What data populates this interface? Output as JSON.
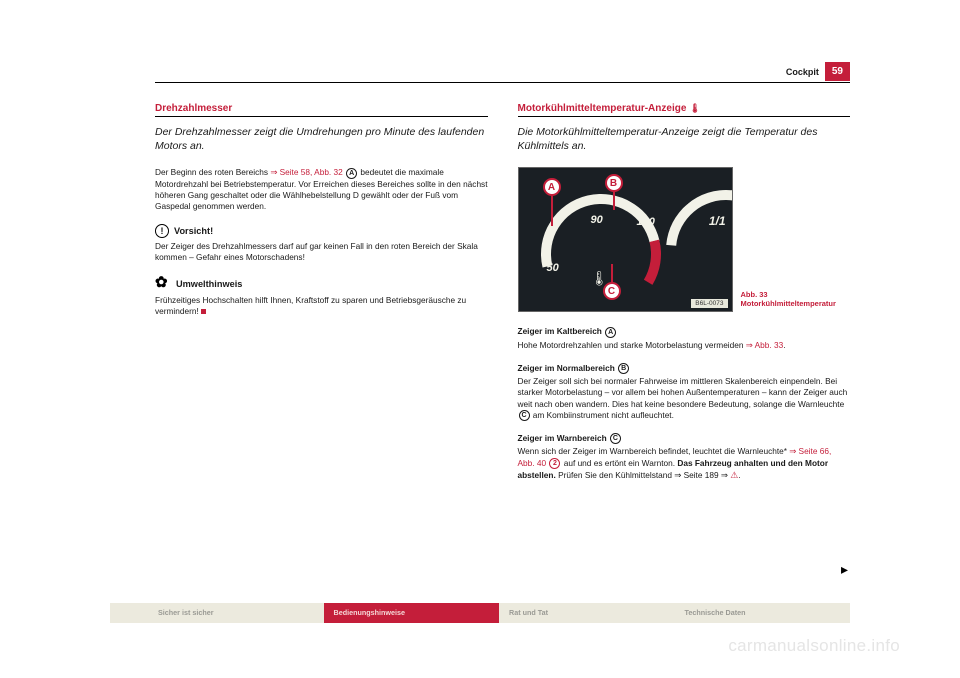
{
  "header": {
    "section": "Cockpit",
    "page_number": "59"
  },
  "left": {
    "title": "Drehzahlmesser",
    "lead": "Der Drehzahlmesser zeigt die Umdrehungen pro Minute des laufenden Motors an.",
    "p1_a": "Der Beginn des roten Bereichs ",
    "p1_ref": "⇒ Seite 58, Abb. 32",
    "p1_circ": "A",
    "p1_b": " bedeutet die maximale Motordrehzahl bei Betriebstemperatur. Vor Erreichen dieses Bereiches sollte in den nächst höheren Gang geschaltet oder die Wählhebelstellung D gewählt oder der Fuß vom Gaspedal genommen werden.",
    "caution_head": "Vorsicht!",
    "caution_body": "Der Zeiger des Drehzahlmessers darf auf gar keinen Fall in den roten Bereich der Skala kommen – Gefahr eines Motorschadens!",
    "env_head": "Umwelthinweis",
    "env_body": "Frühzeitiges Hochschalten hilft Ihnen, Kraftstoff zu sparen und Betriebsgeräusche zu vermindern!"
  },
  "right": {
    "title": "Motorkühlmitteltemperatur-Anzeige ",
    "lead": "Die Motorkühlmitteltemperatur-Anzeige zeigt die Temperatur des Kühlmittels an.",
    "fig": {
      "n50": "50",
      "n90": "90",
      "n130": "130",
      "n11": "1/1",
      "code": "B6L-0073",
      "caption": "Abb. 33   Motorkühlmitteltemperatur",
      "mA": "A",
      "mB": "B",
      "mC": "C"
    },
    "s1_head_a": "Zeiger im Kaltbereich ",
    "s1_circ": "A",
    "s1_body_a": "Hohe Motordrehzahlen und starke Motorbelastung vermeiden ",
    "s1_ref": "⇒ Abb. 33",
    "s1_body_b": ".",
    "s2_head_a": "Zeiger im Normalbereich ",
    "s2_circ": "B",
    "s2_body_a": "Der Zeiger soll sich bei normaler Fahrweise im mittleren Skalenbereich einpendeln. Bei starker Motorbelastung – vor allem bei hohen Außentemperaturen – kann der Zeiger auch weit nach oben wandern. Dies hat keine besondere Bedeutung, solange die Warnleuchte ",
    "s2_circ2": "C",
    "s2_body_b": " am Kombiinstrument nicht aufleuchtet.",
    "s3_head_a": "Zeiger im Warnbereich ",
    "s3_circ": "C",
    "s3_body_a": "Wenn sich der Zeiger im Warnbereich befindet, leuchtet die Warnleuchte* ",
    "s3_ref": "⇒ Seite 66, Abb. 40 ",
    "s3_circ2": "2",
    "s3_body_b": " auf und es ertönt ein Warnton. ",
    "s3_bold": "Das Fahrzeug anhalten und den Motor abstellen.",
    "s3_body_c": " Prüfen Sie den Kühlmittelstand ⇒ Seite 189 ⇒ "
  },
  "footer": {
    "t1": "Sicher ist sicher",
    "t2": "Bedienungshinweise",
    "t3": "Rat und Tat",
    "t4": "Technische Daten"
  },
  "watermark": "carmanualsonline.info"
}
